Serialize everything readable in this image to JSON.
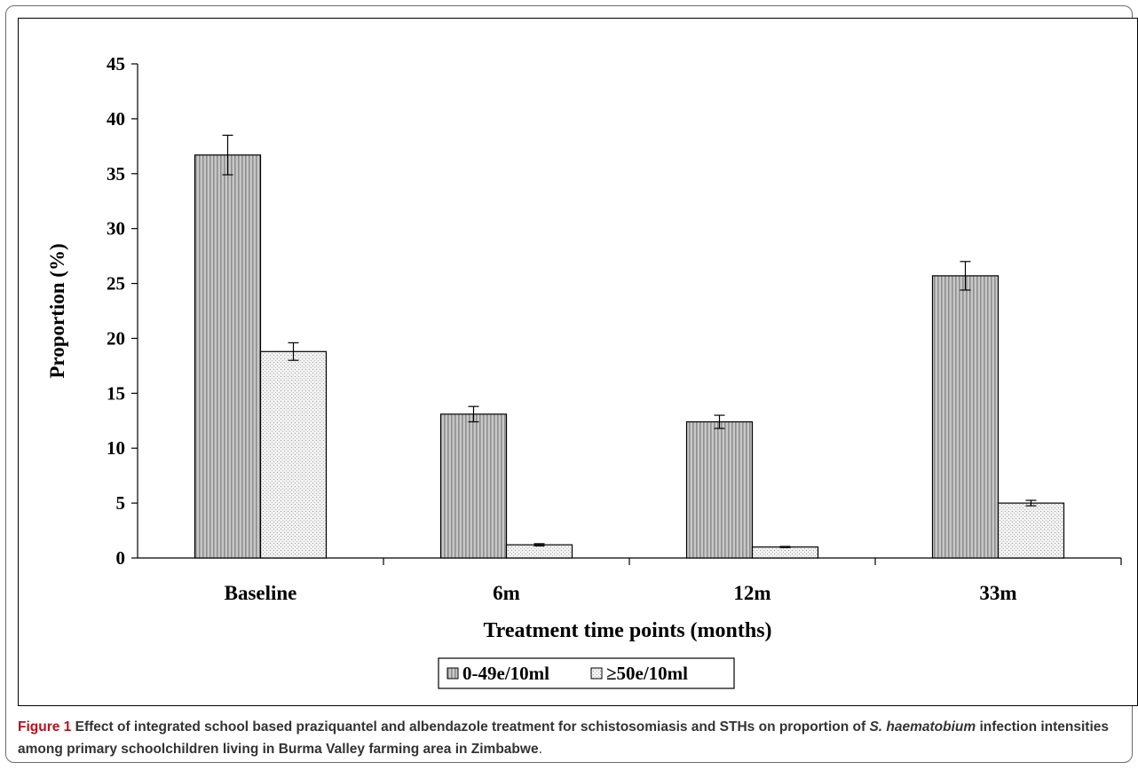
{
  "figure": {
    "caption_label": "Figure 1",
    "caption_part1": "Effect of integrated school based praziquantel and albendazole treatment for schistosomiasis and STHs on proportion of ",
    "caption_species": "S. haematobium",
    "caption_part2": " infection intensities among primary schoolchildren living in Burma Valley farming area in Zimbabwe",
    "caption_end": "."
  },
  "chart_data": {
    "type": "bar",
    "title": "",
    "xlabel": "Treatment time points (months)",
    "ylabel": "Proportion (%)",
    "ylim": [
      0,
      45
    ],
    "yticks": [
      0,
      5,
      10,
      15,
      20,
      25,
      30,
      35,
      40,
      45
    ],
    "ytick_labels": [
      "0",
      "5",
      "10",
      "15",
      "20",
      "25",
      "30",
      "35",
      "40",
      "45"
    ],
    "grid": false,
    "legend_position": "bottom",
    "categories": [
      "Baseline",
      "6m",
      "12m",
      "33m"
    ],
    "series": [
      {
        "name": "0-49e/10ml",
        "values": [
          36.7,
          13.1,
          12.4,
          25.7
        ],
        "error": [
          1.8,
          0.7,
          0.6,
          1.3
        ],
        "color": "#b3b3b3",
        "pattern": "vertical-stripes"
      },
      {
        "name": "≥50e/10ml",
        "values": [
          18.8,
          1.2,
          1.0,
          5.0
        ],
        "error": [
          0.8,
          0.1,
          0.05,
          0.25
        ],
        "color": "#ececec",
        "pattern": "dots"
      }
    ]
  }
}
